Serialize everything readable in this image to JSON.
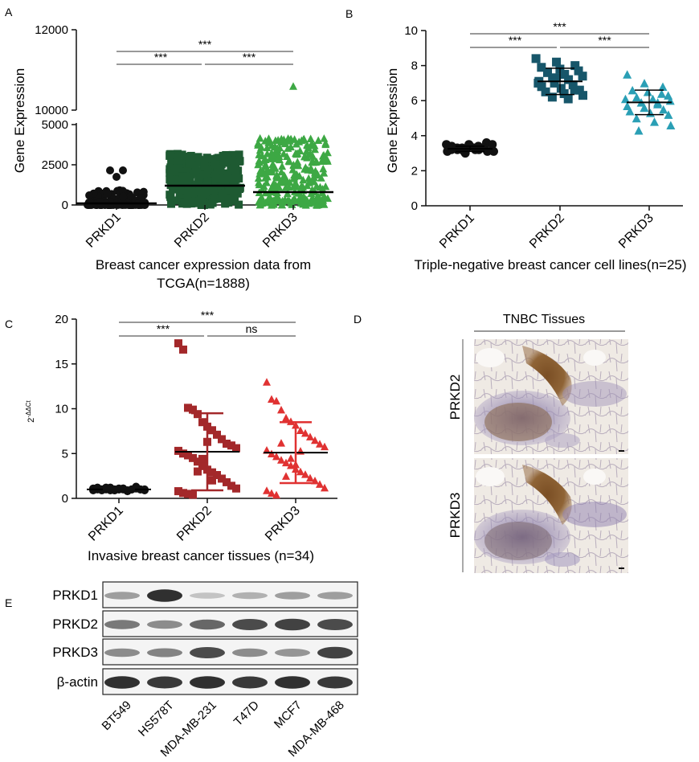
{
  "panels": {
    "A": "A",
    "B": "B",
    "C": "C",
    "D": "D",
    "E": "E"
  },
  "chart_data": [
    {
      "panel": "A",
      "type": "scatter",
      "subtype": "dot-plot-with-mean",
      "ylabel": "Gene Expression",
      "xlabel_lines": [
        "Breast cancer expression data from",
        "TCGA(n=1888)"
      ],
      "categories": [
        "PRKD1",
        "PRKD2",
        "PRKD3"
      ],
      "y_axis_break": {
        "lower": [
          0,
          5000
        ],
        "upper": [
          10000,
          12000
        ]
      },
      "yticks_lower": [
        "0",
        "2500",
        "5000"
      ],
      "yticks_upper": [
        "10000",
        "12000"
      ],
      "series": [
        {
          "category": "PRKD1",
          "marker": "circle",
          "color": "#111111",
          "mean": 100,
          "max": 2200
        },
        {
          "category": "PRKD2",
          "marker": "square",
          "color": "#1e5a32",
          "mean": 1200,
          "max": 3200
        },
        {
          "category": "PRKD3",
          "marker": "triangle",
          "color": "#3da844",
          "mean": 800,
          "max": 4200,
          "outlier": 10600
        }
      ],
      "comparisons": [
        {
          "from": 0,
          "to": 2,
          "label": "***"
        },
        {
          "from": 0,
          "to": 1,
          "label": "***"
        },
        {
          "from": 1,
          "to": 2,
          "label": "***"
        }
      ]
    },
    {
      "panel": "B",
      "type": "scatter",
      "subtype": "dot-plot-with-mean-sd",
      "ylabel": "Gene Expression",
      "xlabel": "Triple-negative breast cancer cell lines(n=25)",
      "categories": [
        "PRKD1",
        "PRKD2",
        "PRKD3"
      ],
      "ylim": [
        0,
        10
      ],
      "yticks": [
        "0",
        "2",
        "4",
        "6",
        "8",
        "10"
      ],
      "series": [
        {
          "category": "PRKD1",
          "marker": "circle",
          "color": "#111111",
          "mean": 3.25,
          "sd": 0.15,
          "values": [
            3.1,
            3.2,
            3.3,
            3.4,
            3.5,
            3.6,
            3.2,
            3.3,
            3.1,
            3.2,
            3.4,
            3.5,
            3.0,
            3.3,
            3.2,
            3.4,
            3.1,
            3.3,
            3.2,
            3.5,
            3.3,
            3.2,
            3.4,
            3.1,
            3.3
          ]
        },
        {
          "category": "PRKD2",
          "marker": "square",
          "color": "#17566a",
          "mean": 7.1,
          "sd": 0.75,
          "values": [
            8.4,
            8.2,
            8.0,
            7.9,
            7.8,
            7.7,
            7.6,
            7.5,
            7.4,
            7.3,
            7.2,
            7.1,
            7.0,
            6.9,
            6.8,
            6.7,
            6.6,
            6.5,
            6.4,
            6.3,
            6.2,
            6.1,
            7.0,
            7.3,
            6.6
          ]
        },
        {
          "category": "PRKD3",
          "marker": "triangle",
          "color": "#2a9fb5",
          "mean": 5.9,
          "sd": 0.7,
          "values": [
            7.5,
            7.0,
            6.8,
            6.6,
            6.5,
            6.3,
            6.2,
            6.1,
            6.0,
            5.9,
            5.8,
            5.7,
            5.6,
            5.5,
            5.4,
            5.3,
            5.2,
            5.0,
            4.8,
            4.6,
            4.3,
            5.9,
            6.1,
            5.6,
            6.4
          ]
        }
      ],
      "comparisons": [
        {
          "from": 0,
          "to": 2,
          "label": "***"
        },
        {
          "from": 0,
          "to": 1,
          "label": "***"
        },
        {
          "from": 1,
          "to": 2,
          "label": "***"
        }
      ]
    },
    {
      "panel": "C",
      "type": "scatter",
      "subtype": "dot-plot-with-mean-sd",
      "ylabel": "2-ΔΔCt",
      "ylabel_base": "2",
      "ylabel_sup": "-ΔΔCt",
      "xlabel": "Invasive breast cancer tissues  (n=34)",
      "categories": [
        "PRKD1",
        "PRKD2",
        "PRKD3"
      ],
      "ylim": [
        0,
        20
      ],
      "yticks": [
        "0",
        "5",
        "10",
        "15",
        "20"
      ],
      "series": [
        {
          "category": "PRKD1",
          "marker": "circle",
          "color": "#111111",
          "mean": 1.0,
          "sd": 0.1,
          "values": [
            1.0,
            1.1,
            0.9,
            1.0,
            1.2,
            0.9,
            1.0,
            1.1,
            0.8,
            1.0,
            1.3,
            1.0,
            0.9,
            1.1,
            1.0,
            1.0,
            1.2,
            0.9,
            1.0,
            1.1,
            1.0,
            0.9,
            1.0,
            1.1,
            1.0,
            1.0,
            0.9,
            1.2,
            1.0,
            1.1,
            1.0,
            0.9,
            1.0,
            1.1
          ]
        },
        {
          "category": "PRKD2",
          "marker": "square",
          "color": "#a3282a",
          "mean": 5.2,
          "sd": 4.3,
          "values": [
            17.3,
            16.6,
            10.1,
            9.9,
            9.4,
            8.5,
            8.0,
            7.6,
            7.1,
            6.6,
            6.1,
            5.9,
            5.6,
            5.3,
            5.0,
            4.8,
            4.5,
            4.1,
            3.6,
            3.2,
            2.9,
            2.6,
            2.2,
            1.8,
            1.4,
            1.1,
            0.8,
            0.6,
            0.5,
            0.4,
            3.0,
            4.4,
            6.3,
            2.0
          ]
        },
        {
          "category": "PRKD3",
          "marker": "triangle",
          "color": "#e03232",
          "mean": 5.1,
          "sd": 3.4,
          "values": [
            13.0,
            11.1,
            10.9,
            9.9,
            9.0,
            8.6,
            8.2,
            7.6,
            7.3,
            6.9,
            6.5,
            6.1,
            5.8,
            5.4,
            5.0,
            4.7,
            4.3,
            4.0,
            3.7,
            3.3,
            3.0,
            2.7,
            2.3,
            2.0,
            1.6,
            1.2,
            0.9,
            0.6,
            0.4,
            6.2,
            2.5,
            4.5,
            3.8,
            5.3
          ]
        }
      ],
      "comparisons": [
        {
          "from": 0,
          "to": 2,
          "label": "***"
        },
        {
          "from": 0,
          "to": 1,
          "label": "***"
        },
        {
          "from": 1,
          "to": 2,
          "label": "ns"
        }
      ]
    }
  ],
  "ihc": {
    "title": "TNBC Tissues",
    "rows": [
      "PRKD2",
      "PRKD3"
    ]
  },
  "western_blot": {
    "rows": [
      "PRKD1",
      "PRKD2",
      "PRKD3",
      "β-actin"
    ],
    "cell_lines": [
      "BT549",
      "HS578T",
      "MDA-MB-231",
      "T47D",
      "MCF7",
      "MDA-MB-468"
    ],
    "band_intensity": [
      [
        0.35,
        0.95,
        0.15,
        0.25,
        0.35,
        0.35
      ],
      [
        0.55,
        0.45,
        0.65,
        0.8,
        0.85,
        0.8
      ],
      [
        0.45,
        0.5,
        0.8,
        0.45,
        0.4,
        0.85
      ],
      [
        0.95,
        0.9,
        0.95,
        0.9,
        0.95,
        0.9
      ]
    ]
  }
}
